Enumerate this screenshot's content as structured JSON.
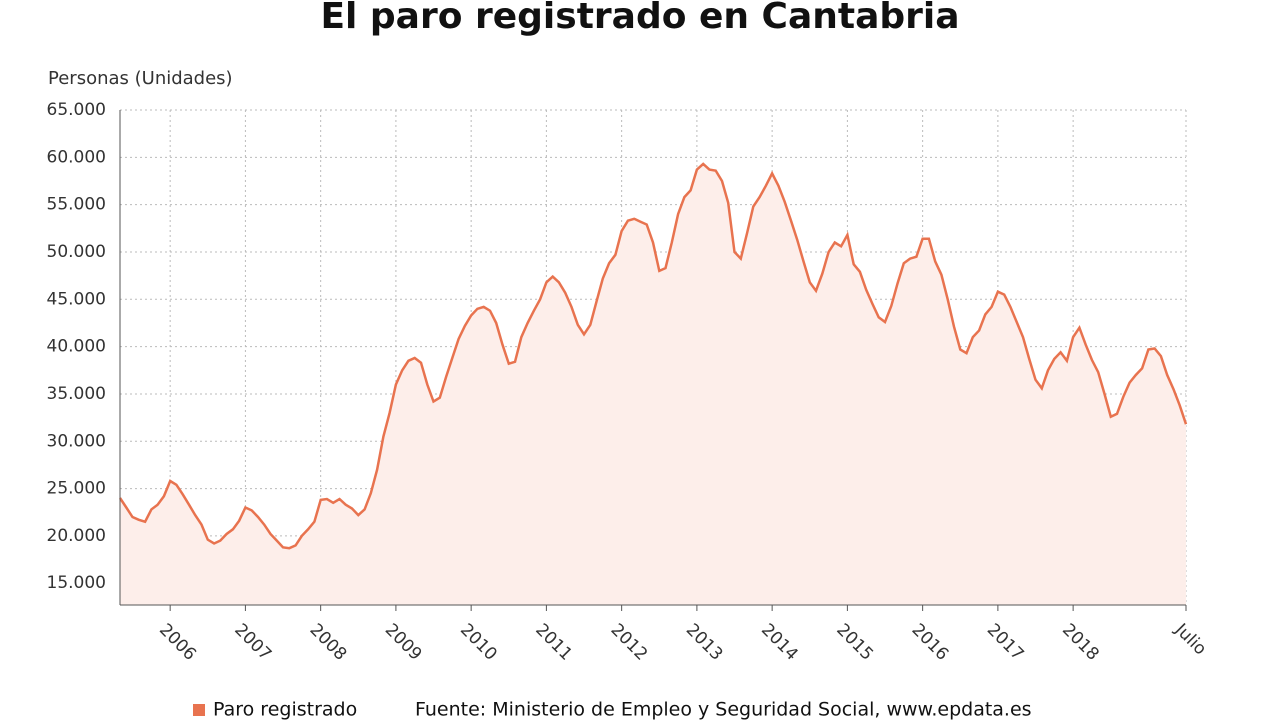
{
  "chart_data": {
    "type": "line",
    "title": "El paro registrado en Cantabria",
    "y_label": "Personas (Unidades)",
    "source": "Fuente: Ministerio de Empleo y Seguridad Social, www.epdata.es",
    "categories": [
      null,
      null,
      null,
      null,
      null,
      null,
      null,
      null,
      "2006",
      null,
      null,
      null,
      null,
      null,
      null,
      null,
      null,
      null,
      null,
      null,
      "2007",
      null,
      null,
      null,
      null,
      null,
      null,
      null,
      null,
      null,
      null,
      null,
      "2008",
      null,
      null,
      null,
      null,
      null,
      null,
      null,
      null,
      null,
      null,
      null,
      "2009",
      null,
      null,
      null,
      null,
      null,
      null,
      null,
      null,
      null,
      null,
      null,
      "2010",
      null,
      null,
      null,
      null,
      null,
      null,
      null,
      null,
      null,
      null,
      null,
      "2011",
      null,
      null,
      null,
      null,
      null,
      null,
      null,
      null,
      null,
      null,
      null,
      "2012",
      null,
      null,
      null,
      null,
      null,
      null,
      null,
      null,
      null,
      null,
      null,
      "2013",
      null,
      null,
      null,
      null,
      null,
      null,
      null,
      null,
      null,
      null,
      null,
      "2014",
      null,
      null,
      null,
      null,
      null,
      null,
      null,
      null,
      null,
      null,
      null,
      "2015",
      null,
      null,
      null,
      null,
      null,
      null,
      null,
      null,
      null,
      null,
      null,
      "2016",
      null,
      null,
      null,
      null,
      null,
      null,
      null,
      null,
      null,
      null,
      null,
      "2017",
      null,
      null,
      null,
      null,
      null,
      null,
      null,
      null,
      null,
      null,
      null,
      "2018",
      null,
      null,
      null,
      null,
      null,
      null,
      null,
      null,
      null,
      null,
      null,
      null,
      null,
      null,
      null,
      null,
      null,
      "Julio"
    ],
    "series": [
      {
        "name": "Paro registrado",
        "color": "#e8734f",
        "area_color": "#fdeeea",
        "values": [
          24000,
          23000,
          22000,
          21700,
          21500,
          22800,
          23300,
          24200,
          25800,
          25400,
          24400,
          23300,
          22200,
          21200,
          19600,
          19200,
          19500,
          20200,
          20700,
          21600,
          23000,
          22700,
          22000,
          21200,
          20200,
          19500,
          18800,
          18700,
          19000,
          20000,
          20700,
          21500,
          23800,
          23900,
          23500,
          23900,
          23300,
          22900,
          22200,
          22800,
          24500,
          27000,
          30500,
          33000,
          36000,
          37500,
          38500,
          38800,
          38300,
          36000,
          34200,
          34600,
          36800,
          38800,
          40800,
          42200,
          43300,
          44000,
          44200,
          43800,
          42500,
          40200,
          38200,
          38400,
          41000,
          42500,
          43800,
          45000,
          46800,
          47400,
          46800,
          45700,
          44200,
          42300,
          41300,
          42300,
          44800,
          47200,
          48800,
          49700,
          52200,
          53300,
          53500,
          53200,
          52900,
          51000,
          48000,
          48300,
          51000,
          54000,
          55800,
          56500,
          58700,
          59300,
          58700,
          58600,
          57500,
          55200,
          50000,
          49300,
          52000,
          54800,
          55800,
          57000,
          58300,
          57000,
          55300,
          53300,
          51300,
          49000,
          46800,
          45900,
          47700,
          50000,
          51000,
          50600,
          51800,
          48700,
          47900,
          46000,
          44500,
          43100,
          42600,
          44300,
          46700,
          48800,
          49300,
          49500,
          51400,
          51400,
          49000,
          47600,
          45000,
          42100,
          39700,
          39300,
          41000,
          41700,
          43400,
          44200,
          45800,
          45500,
          44200,
          42600,
          41000,
          38700,
          36500,
          35600,
          37500,
          38700,
          39400,
          38500,
          41000,
          42000,
          40200,
          38600,
          37300,
          35000,
          32600,
          32900,
          34700,
          36200,
          37000,
          37700,
          39700,
          39800,
          39000,
          37000,
          35500,
          33800,
          31800
        ]
      }
    ],
    "ylim": [
      12700,
      65000
    ],
    "yticks": [
      {
        "value": 15000,
        "label": "15.000"
      },
      {
        "value": 20000,
        "label": "20.000"
      },
      {
        "value": 25000,
        "label": "25.000"
      },
      {
        "value": 30000,
        "label": "30.000"
      },
      {
        "value": 35000,
        "label": "35.000"
      },
      {
        "value": 40000,
        "label": "40.000"
      },
      {
        "value": 45000,
        "label": "45.000"
      },
      {
        "value": 50000,
        "label": "50.000"
      },
      {
        "value": 55000,
        "label": "55.000"
      },
      {
        "value": 60000,
        "label": "60.000"
      },
      {
        "value": 65000,
        "label": "65.000"
      }
    ],
    "grid": true
  }
}
